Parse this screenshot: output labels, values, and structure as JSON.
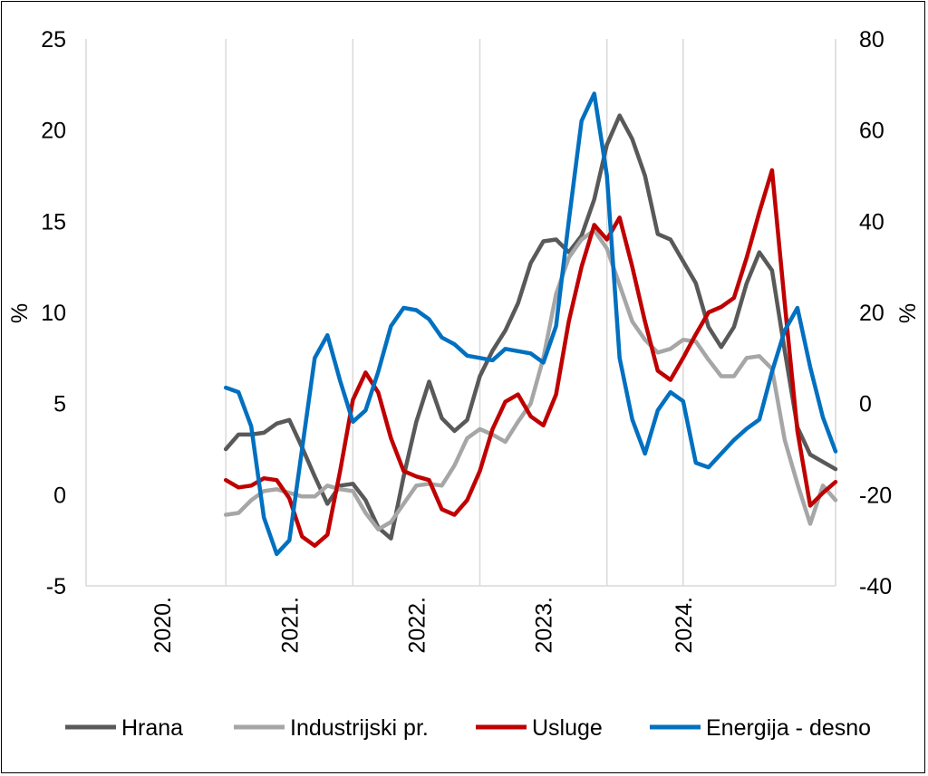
{
  "chart_data": {
    "type": "line",
    "title": "",
    "ylabel_left": "%",
    "ylabel_right": "%",
    "ylim_left": [
      -5,
      25
    ],
    "ylim_right": [
      -40,
      80
    ],
    "yticks_left": [
      "-5",
      "0",
      "5",
      "10",
      "15",
      "20",
      "25"
    ],
    "yticks_right": [
      "-40",
      "-20",
      "0",
      "20",
      "40",
      "60",
      "80"
    ],
    "x_range_months": [
      0,
      59
    ],
    "x_year_ticks": [
      {
        "label": "2020.",
        "month": 6
      },
      {
        "label": "2021.",
        "month": 16
      },
      {
        "label": "2022.",
        "month": 26
      },
      {
        "label": "2023.",
        "month": 36
      },
      {
        "label": "2024.",
        "month": 47
      }
    ],
    "gridlines_x_months": [
      11,
      21,
      31,
      41,
      47
    ],
    "colors": {
      "hrana": "#595959",
      "industrijski": "#a6a6a6",
      "usluge": "#c00000",
      "energija": "#0070c0"
    },
    "series": [
      {
        "name": "Hrana",
        "key": "hrana",
        "axis": "left",
        "values": [
          2.5,
          3.3,
          3.3,
          3.4,
          3.9,
          4.1,
          2.6,
          1.0,
          -0.5,
          0.5,
          0.6,
          -0.3,
          -1.8,
          -2.4,
          1.0,
          4.0,
          6.2,
          4.2,
          3.5,
          4.1,
          6.5,
          7.9,
          9.0,
          10.5,
          12.7,
          13.9,
          14.0,
          13.3,
          14.2,
          16.2,
          19.2,
          20.8,
          19.5,
          17.5,
          14.3,
          14.0,
          12.8,
          11.6,
          9.2,
          8.1,
          9.2,
          11.6,
          13.3,
          12.3,
          7.9,
          3.7,
          2.2,
          1.8,
          1.4
        ]
      },
      {
        "name": "Industrijski pr.",
        "key": "industrijski",
        "axis": "left",
        "values": [
          -1.1,
          -1.0,
          -0.3,
          0.2,
          0.3,
          0.1,
          -0.1,
          -0.1,
          0.5,
          0.3,
          0.2,
          -1.0,
          -1.9,
          -1.5,
          -0.5,
          0.5,
          0.6,
          0.5,
          1.6,
          3.1,
          3.6,
          3.3,
          2.9,
          4.0,
          5.0,
          7.5,
          11.0,
          13.0,
          14.0,
          14.5,
          13.5,
          11.5,
          9.5,
          8.5,
          7.8,
          8.0,
          8.5,
          8.4,
          7.4,
          6.5,
          6.5,
          7.5,
          7.6,
          6.9,
          3.0,
          0.6,
          -1.6,
          0.5,
          -0.3
        ]
      },
      {
        "name": "Usluge",
        "key": "usluge",
        "axis": "left",
        "values": [
          0.8,
          0.4,
          0.5,
          0.9,
          0.8,
          -0.2,
          -2.3,
          -2.8,
          -2.2,
          1.3,
          5.2,
          6.7,
          5.6,
          3.1,
          1.3,
          1.0,
          0.8,
          -0.8,
          -1.1,
          -0.3,
          1.3,
          3.6,
          5.1,
          5.5,
          4.3,
          3.8,
          5.5,
          9.5,
          12.5,
          14.8,
          14.0,
          15.2,
          12.5,
          9.5,
          6.8,
          6.3,
          7.5,
          8.8,
          10.0,
          10.3,
          10.8,
          13.0,
          15.5,
          17.8,
          10.5,
          3.5,
          -0.6,
          0.1,
          0.7
        ]
      },
      {
        "name": "Energija - desno",
        "key": "energija",
        "axis": "right",
        "values": [
          3.5,
          2.5,
          -5.0,
          -25.0,
          -33.0,
          -30.0,
          -10.0,
          10.0,
          15.0,
          5.0,
          -4.0,
          -1.5,
          7.0,
          17.0,
          21.0,
          20.5,
          18.5,
          14.5,
          13.0,
          10.5,
          10.0,
          9.5,
          12.0,
          11.5,
          11.0,
          9.0,
          17.0,
          40.0,
          62.0,
          68.0,
          50.0,
          10.0,
          -3.5,
          -11.0,
          -1.5,
          2.5,
          0.5,
          -13.0,
          -14.0,
          -11.0,
          -8.0,
          -5.5,
          -3.5,
          7.0,
          16.0,
          21.0,
          8.0,
          -3.0,
          -10.5
        ]
      }
    ],
    "legend": [
      {
        "label": "Hrana",
        "key": "hrana"
      },
      {
        "label": "Industrijski pr.",
        "key": "industrijski"
      },
      {
        "label": "Usluge",
        "key": "usluge"
      },
      {
        "label": "Energija - desno",
        "key": "energija"
      }
    ],
    "legend_position": "bottom"
  }
}
